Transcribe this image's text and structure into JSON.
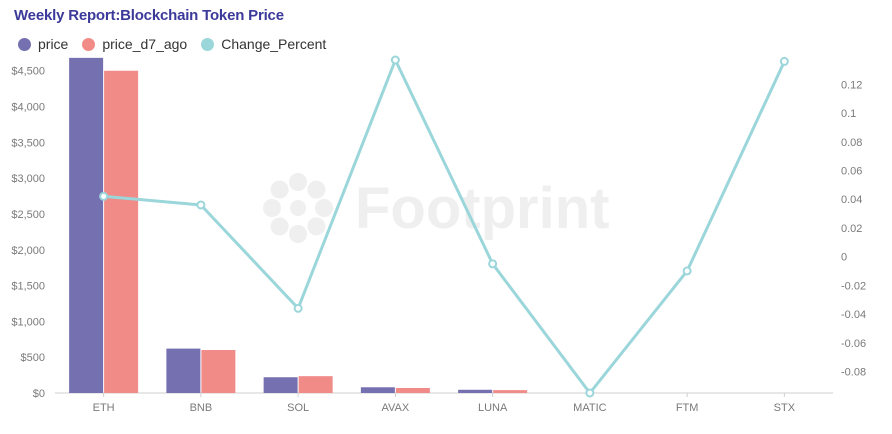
{
  "title": "Weekly Report:Blockchain Token Price",
  "legend": [
    {
      "label": "price",
      "color": "#7570b0"
    },
    {
      "label": "price_d7_ago",
      "color": "#f08b88"
    },
    {
      "label": "Change_Percent",
      "color": "#9bd6da"
    }
  ],
  "watermark": "Footprint",
  "chart_data": {
    "type": "bar",
    "categories": [
      "ETH",
      "BNB",
      "SOL",
      "AVAX",
      "LUNA",
      "MATIC",
      "FTM",
      "STX"
    ],
    "series": [
      {
        "name": "price",
        "type": "bar",
        "axis": "left",
        "color": "#7570b0",
        "values": [
          4680,
          620,
          220,
          80,
          45,
          0,
          0,
          0
        ]
      },
      {
        "name": "price_d7_ago",
        "type": "bar",
        "axis": "left",
        "color": "#f08b88",
        "values": [
          4500,
          600,
          235,
          70,
          40,
          0,
          0,
          0
        ]
      },
      {
        "name": "Change_Percent",
        "type": "line",
        "axis": "right",
        "color": "#9bd6da",
        "values": [
          0.042,
          0.036,
          -0.036,
          0.137,
          -0.005,
          -0.095,
          -0.01,
          0.136
        ]
      }
    ],
    "left_axis": {
      "ticks": [
        "$0",
        "$500",
        "$1,000",
        "$1,500",
        "$2,000",
        "$2,500",
        "$3,000",
        "$3,500",
        "$4,000",
        "$4,500"
      ],
      "values": [
        0,
        500,
        1000,
        1500,
        2000,
        2500,
        3000,
        3500,
        4000,
        4500
      ],
      "ylim": [
        0,
        4650
      ]
    },
    "right_axis": {
      "ticks": [
        "-0.08",
        "-0.06",
        "-0.04",
        "-0.02",
        "0",
        "0.02",
        "0.04",
        "0.06",
        "0.08",
        "0.1",
        "0.12"
      ],
      "values": [
        -0.08,
        -0.06,
        -0.04,
        -0.02,
        0,
        0.02,
        0.04,
        0.06,
        0.08,
        0.1,
        0.12
      ],
      "ylim": [
        -0.095,
        0.137
      ]
    },
    "grid": true,
    "legend_position": "top-left"
  }
}
